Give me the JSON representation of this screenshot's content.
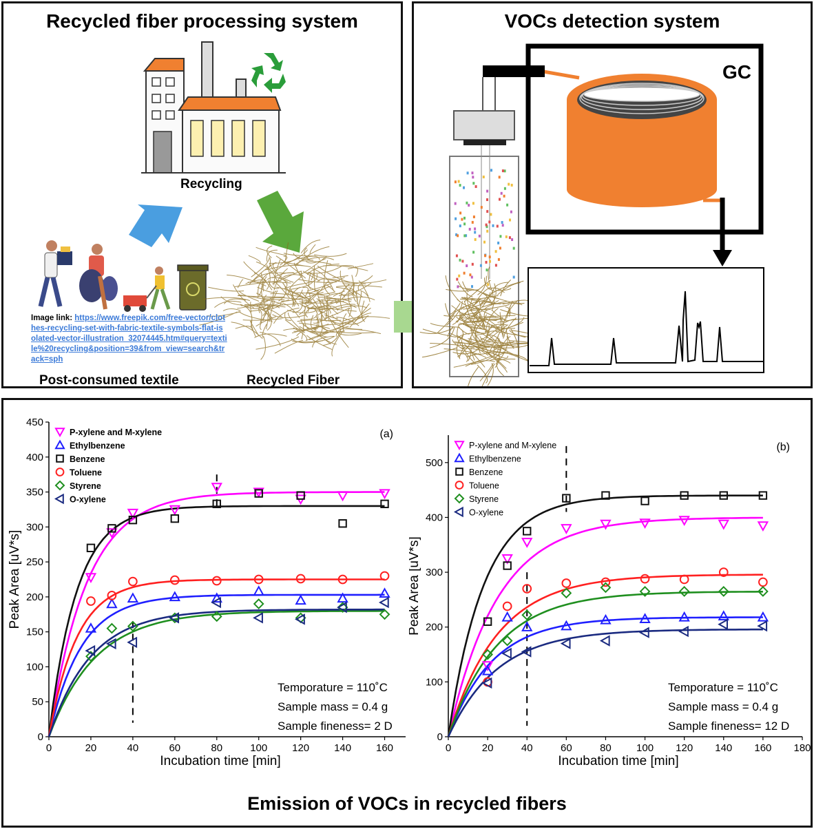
{
  "top_left": {
    "title": "Recycled fiber processing system",
    "recycling_label": "Recycling",
    "source_label": "Post-consumed textile",
    "fiber_label": "Recycled Fiber",
    "image_link_label": "Image link:",
    "image_link_url": "https://www.freepik.com/free-vector/clothes-recycling-set-with-fabric-textile-symbols-flat-isolated-vector-illustration_32074445.htm#query=textile%20recycling&position=39&from_view=search&track=sph"
  },
  "top_right": {
    "title": "VOCs detection system",
    "gc_label": "GC"
  },
  "footer_title": "Emission of VOCs in recycled fibers",
  "colors": {
    "pxylene": "#ff00ff",
    "ethylbenzene": "#1f1fff",
    "benzene": "#111111",
    "toluene": "#ff2020",
    "styrene": "#1f8f1f",
    "oxylene": "#1a2a80",
    "gc_orange": "#f08030",
    "arrow_blue": "#4a9ee0",
    "arrow_green": "#5aa83c",
    "arrow_light_green": "#a8d890"
  },
  "chart_data": [
    {
      "type": "scatter",
      "panel_label": "(a)",
      "xlabel": "Incubation time [min]",
      "ylabel": "Peak Area [uV*s]",
      "xlim": [
        0,
        170
      ],
      "ylim": [
        0,
        450
      ],
      "xticks": [
        0,
        20,
        40,
        60,
        80,
        100,
        120,
        140,
        160
      ],
      "yticks": [
        0,
        50,
        100,
        150,
        200,
        250,
        300,
        350,
        400,
        450
      ],
      "legend_position": "top-left",
      "annotations": [
        "Temporature = 110˚C",
        "Sample mass = 0.4 g",
        "Sample fineness= 2 D"
      ],
      "dashed_lines_x": [
        40,
        80
      ],
      "series": [
        {
          "name": "P-xylene and M-xylene",
          "key": "pxylene",
          "marker": "triangle-down",
          "x": [
            20,
            30,
            40,
            60,
            80,
            100,
            120,
            140,
            160
          ],
          "y": [
            228,
            292,
            320,
            325,
            357,
            350,
            340,
            345,
            348
          ],
          "fit": {
            "a": 350,
            "k": 0.055
          }
        },
        {
          "name": "Ethylbenzene",
          "key": "ethylbenzene",
          "marker": "triangle-up",
          "x": [
            20,
            30,
            40,
            60,
            80,
            100,
            120,
            140,
            160
          ],
          "y": [
            155,
            190,
            198,
            200,
            198,
            208,
            195,
            198,
            205
          ],
          "fit": {
            "a": 203,
            "k": 0.065
          }
        },
        {
          "name": "Benzene",
          "key": "benzene",
          "marker": "square",
          "x": [
            20,
            30,
            40,
            60,
            80,
            100,
            120,
            140,
            160
          ],
          "y": [
            270,
            298,
            310,
            312,
            333,
            348,
            345,
            305,
            333
          ],
          "fit": {
            "a": 330,
            "k": 0.075
          }
        },
        {
          "name": "Toluene",
          "key": "toluene",
          "marker": "circle",
          "x": [
            20,
            30,
            40,
            60,
            80,
            100,
            120,
            140,
            160
          ],
          "y": [
            194,
            202,
            222,
            224,
            223,
            225,
            226,
            225,
            230
          ],
          "fit": {
            "a": 225,
            "k": 0.075
          }
        },
        {
          "name": "Styrene",
          "key": "styrene",
          "marker": "diamond",
          "x": [
            20,
            30,
            40,
            60,
            80,
            100,
            120,
            140,
            160
          ],
          "y": [
            115,
            155,
            158,
            170,
            172,
            190,
            170,
            185,
            175
          ],
          "fit": {
            "a": 180,
            "k": 0.045
          }
        },
        {
          "name": "O-xylene",
          "key": "oxylene",
          "marker": "triangle-left",
          "x": [
            20,
            30,
            40,
            60,
            80,
            100,
            120,
            140,
            160
          ],
          "y": [
            123,
            133,
            135,
            170,
            192,
            170,
            168,
            185,
            192
          ],
          "fit": {
            "a": 182,
            "k": 0.05
          }
        }
      ]
    },
    {
      "type": "scatter",
      "panel_label": "(b)",
      "xlabel": "Incubation time [min]",
      "ylabel": "Peak Area [uV*s]",
      "xlim": [
        0,
        180
      ],
      "ylim": [
        0,
        550
      ],
      "xticks": [
        0,
        20,
        40,
        60,
        80,
        100,
        120,
        140,
        160,
        180
      ],
      "yticks": [
        0,
        100,
        200,
        300,
        400,
        500
      ],
      "legend_position": "top-left",
      "annotations": [
        "Temporature = 110˚C",
        "Sample mass = 0.4 g",
        "Sample fineness= 12 D"
      ],
      "dashed_lines_x": [
        40,
        60
      ],
      "series": [
        {
          "name": "P-xylene and M-xylene",
          "key": "pxylene",
          "marker": "triangle-down",
          "x": [
            20,
            30,
            40,
            60,
            80,
            100,
            120,
            140,
            160
          ],
          "y": [
            130,
            325,
            355,
            380,
            388,
            390,
            395,
            388,
            385
          ],
          "fit": {
            "a": 400,
            "k": 0.04
          }
        },
        {
          "name": "Ethylbenzene",
          "key": "ethylbenzene",
          "marker": "triangle-up",
          "x": [
            20,
            30,
            40,
            60,
            80,
            100,
            120,
            140,
            160
          ],
          "y": [
            120,
            218,
            200,
            202,
            213,
            215,
            218,
            220,
            218
          ],
          "fit": {
            "a": 218,
            "k": 0.045
          }
        },
        {
          "name": "Benzene",
          "key": "benzene",
          "marker": "square",
          "x": [
            20,
            30,
            40,
            60,
            80,
            100,
            120,
            140,
            160
          ],
          "y": [
            210,
            312,
            375,
            435,
            440,
            430,
            440,
            440,
            440
          ],
          "fit": {
            "a": 440,
            "k": 0.055
          }
        },
        {
          "name": "Toluene",
          "key": "toluene",
          "marker": "circle",
          "x": [
            20,
            30,
            40,
            60,
            80,
            100,
            120,
            140,
            160
          ],
          "y": [
            100,
            238,
            270,
            280,
            282,
            288,
            287,
            300,
            282
          ],
          "fit": {
            "a": 296,
            "k": 0.04
          }
        },
        {
          "name": "Styrene",
          "key": "styrene",
          "marker": "diamond",
          "x": [
            20,
            30,
            40,
            60,
            80,
            100,
            120,
            140,
            160
          ],
          "y": [
            150,
            175,
            222,
            262,
            272,
            265,
            265,
            265,
            265
          ],
          "fit": {
            "a": 265,
            "k": 0.04
          }
        },
        {
          "name": "O-xylene",
          "key": "oxylene",
          "marker": "triangle-left",
          "x": [
            20,
            30,
            40,
            60,
            80,
            100,
            120,
            140,
            160
          ],
          "y": [
            98,
            152,
            155,
            170,
            175,
            190,
            192,
            205,
            202
          ],
          "fit": {
            "a": 196,
            "k": 0.04
          }
        }
      ]
    }
  ]
}
